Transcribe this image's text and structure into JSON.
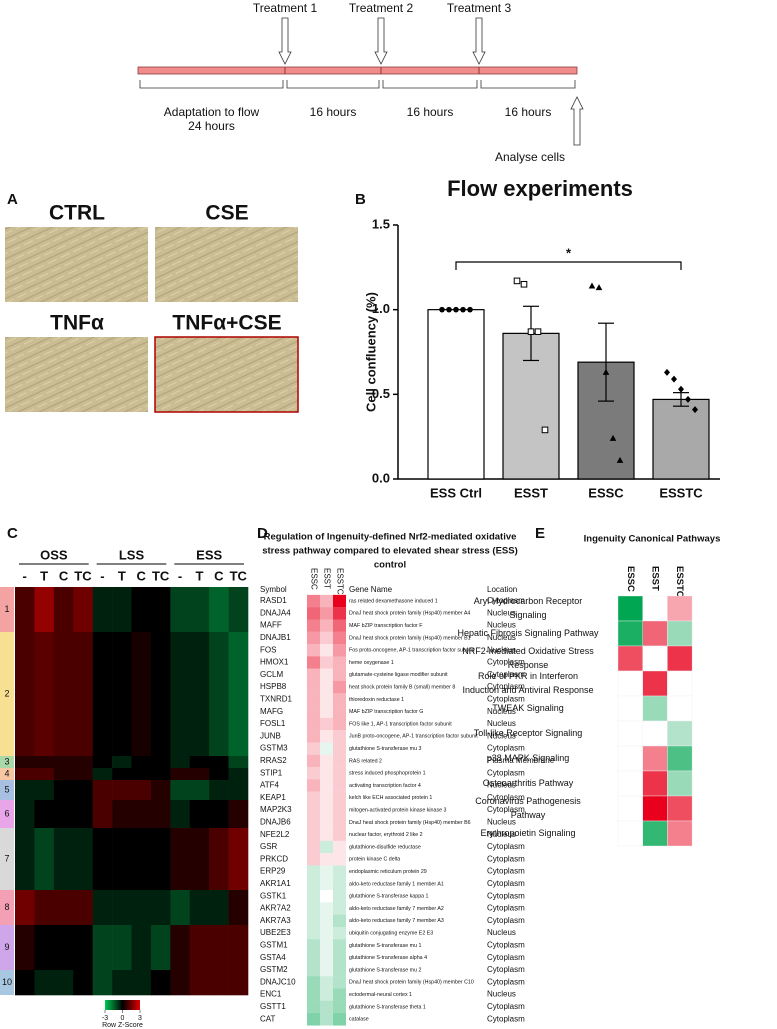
{
  "timeline": {
    "treatments": [
      "Treatment 1",
      "Treatment 2",
      "Treatment 3"
    ],
    "periods": [
      [
        "Adaptation to flow",
        "24 hours"
      ],
      [
        "16 hours"
      ],
      [
        "16 hours"
      ],
      [
        "16 hours"
      ]
    ],
    "endpoint": "Analyse cells"
  },
  "panel_letters": [
    "A",
    "B",
    "C",
    "D",
    "E"
  ],
  "micrographs": {
    "labels": [
      "CTRL",
      "CSE",
      "TNFα",
      "TNFα+CSE"
    ]
  },
  "chart_data": [
    {
      "type": "bar",
      "title": "Flow experiments",
      "ylabel": "Cell confluency (%)",
      "categories": [
        "ESS Ctrl",
        "ESST",
        "ESSC",
        "ESSTC"
      ],
      "values": [
        1,
        0.86,
        0.69,
        0.47
      ],
      "errors": [
        0,
        0.16,
        0.23,
        0.04
      ],
      "colors": [
        "#ffffff",
        "#c4c4c4",
        "#7b7b7b",
        "#a9a9a9"
      ],
      "points": [
        [
          1,
          1,
          1,
          1,
          1
        ],
        [
          1.17,
          1.15,
          0.87,
          0.87,
          0.29
        ],
        [
          1.14,
          1.13,
          0.63,
          0.24,
          0.11
        ],
        [
          0.63,
          0.59,
          0.53,
          0.47,
          0.41
        ]
      ],
      "markers": [
        "circle",
        "square",
        "triangle",
        "diamond"
      ],
      "annotation": "*",
      "ylim": [
        0,
        1.5
      ],
      "yticks": [
        {
          "value": 0,
          "label": "0.0"
        },
        0.5,
        {
          "value": 1,
          "label": "1.0"
        },
        1.5
      ]
    },
    {
      "type": "heatmap",
      "groups": [
        "OSS",
        "LSS",
        "ESS"
      ],
      "categories": [
        "-",
        "T",
        "C",
        "TC",
        "-",
        "T",
        "C",
        "TC",
        "-",
        "T",
        "C",
        "TC"
      ],
      "clusters": [
        "1",
        "2",
        "3",
        "4",
        "5",
        "6",
        "7",
        "8",
        "9",
        "10"
      ],
      "cluster_colors": [
        "#f4a3a3",
        "#f8e092",
        "#a9d8a9",
        "#f7c7a4",
        "#a7bfe0",
        "#e8a6e8",
        "#d9d9d9",
        "#f4a0b4",
        "#cfa6ea",
        "#a8c8e2"
      ],
      "values": [
        [
          1,
          2,
          1,
          1.5,
          -0.5,
          -0.5,
          0,
          0,
          -1,
          -1,
          -1.5,
          -1
        ],
        [
          1,
          1.2,
          1,
          1,
          0,
          0,
          0.3,
          0,
          -0.5,
          -0.5,
          -1,
          -1.5
        ],
        [
          0.5,
          0.5,
          0.5,
          0.5,
          0,
          -0.5,
          0,
          0,
          -0.5,
          0,
          0,
          -1
        ],
        [
          1,
          1,
          0.5,
          0.5,
          -0.5,
          0,
          0,
          0,
          0.5,
          0.5,
          0,
          -0.5
        ],
        [
          -0.5,
          -0.5,
          0,
          0,
          1,
          1,
          1,
          0.5,
          -1,
          -1,
          -0.5,
          -0.5
        ],
        [
          -0.5,
          0,
          0,
          0,
          1,
          0.5,
          0.5,
          0.5,
          -0.5,
          0,
          0,
          0.5
        ],
        [
          -0.5,
          -1,
          -0.5,
          -0.5,
          0,
          0,
          0,
          0,
          0.5,
          0.5,
          1,
          1.5
        ],
        [
          1.5,
          1,
          1,
          1,
          -0.5,
          -0.5,
          -0.5,
          -0.5,
          -1,
          -0.5,
          -0.5,
          0.5
        ],
        [
          0.5,
          0,
          0,
          0,
          -1,
          -1,
          -0.5,
          -1,
          0.5,
          1,
          1,
          1
        ],
        [
          0,
          -0.5,
          -0.5,
          0,
          -1,
          -0.5,
          -0.5,
          0,
          0.5,
          1,
          1,
          1
        ]
      ],
      "colorbar": {
        "ticks": [
          -3,
          0,
          3
        ],
        "label": "Row Z-Score",
        "colors": [
          "#00c853",
          "#000000",
          "#e00000"
        ]
      }
    },
    {
      "type": "heatmap",
      "title": "Ingenuity Canonical Pathways",
      "columns": [
        "ESSC",
        "ESST",
        "ESSTC"
      ],
      "rows": [
        [
          "Aryl Hydrocarbon Receptor",
          "Signaling"
        ],
        [
          "Hepatic Fibrosis Signaling Pathway"
        ],
        [
          "NRF2-mediated Oxidative Stress",
          "Response"
        ],
        [
          "Role of PKR in Interferon",
          "Induction and Antiviral Response"
        ],
        [
          "TWEAK Signaling"
        ],
        [
          "Toll-like Receptor Signaling"
        ],
        [
          "p38 MAPK Signaling"
        ],
        [
          "Osteoarthritis Pathway"
        ],
        [
          "Coronavirus Pathogenesis",
          "Pathway"
        ],
        [
          "Erythropoietin Signaling"
        ]
      ],
      "values": [
        [
          -1,
          0,
          0.35
        ],
        [
          -0.9,
          0.6,
          -0.4
        ],
        [
          0.7,
          0,
          0.8
        ],
        [
          0,
          0.8,
          0
        ],
        [
          0,
          -0.4,
          0
        ],
        [
          0,
          0,
          -0.3
        ],
        [
          0,
          0.5,
          -0.7
        ],
        [
          0,
          0.8,
          -0.4
        ],
        [
          0,
          1,
          0.7
        ],
        [
          0,
          -0.8,
          0.5
        ]
      ],
      "colors": [
        "#00a651",
        "#ffffff",
        "#e8001c"
      ]
    }
  ],
  "table_d": {
    "title": [
      "Regulation of Ingenuity-defined Nrf2-mediated oxidative",
      "stress pathway compared to elevated shear stress (ESS)",
      "control"
    ],
    "headers": {
      "symbol": "Symbol",
      "columns": [
        "ESSC",
        "ESST",
        "ESSTC"
      ],
      "gene": "Gene Name",
      "location": "Location"
    },
    "colors": [
      "#00a651",
      "#ffffff",
      "#e8001c"
    ],
    "rows": [
      {
        "symbol": "RASD1",
        "gene": "ras related dexamethasone induced 1",
        "location": "Cytoplasm",
        "values": [
          0.5,
          0.3,
          1
        ]
      },
      {
        "symbol": "DNAJA4",
        "gene": "DnaJ heat shock protein family (Hsp40) member A4",
        "location": "Nucleus",
        "values": [
          0.6,
          0.4,
          0.8
        ]
      },
      {
        "symbol": "MAFF",
        "gene": "MAF bZIP transcription factor F",
        "location": "Nucleus",
        "values": [
          0.5,
          0.3,
          0.6
        ]
      },
      {
        "symbol": "DNAJB1",
        "gene": "DnaJ heat shock protein family (Hsp40) member B1",
        "location": "Nucleus",
        "values": [
          0.4,
          0.2,
          0.5
        ]
      },
      {
        "symbol": "FOS",
        "gene": "Fos proto-oncogene, AP-1 transcription factor subunit",
        "location": "Nucleus",
        "values": [
          0.3,
          0.1,
          0.4
        ]
      },
      {
        "symbol": "HMOX1",
        "gene": "heme oxygenase 1",
        "location": "Cytoplasm",
        "values": [
          0.5,
          0.2,
          0.3
        ]
      },
      {
        "symbol": "GCLM",
        "gene": "glutamate-cysteine ligase modifier subunit",
        "location": "Cytoplasm",
        "values": [
          0.3,
          0.1,
          0.3
        ]
      },
      {
        "symbol": "HSPB8",
        "gene": "heat shock protein family B (small) member 8",
        "location": "Cytoplasm",
        "values": [
          0.3,
          0.1,
          0.4
        ]
      },
      {
        "symbol": "TXNRD1",
        "gene": "thioredoxin reductase 1",
        "location": "Cytoplasm",
        "values": [
          0.3,
          0.1,
          0.3
        ]
      },
      {
        "symbol": "MAFG",
        "gene": "MAF bZIP transcription factor G",
        "location": "Nucleus",
        "values": [
          0.3,
          0.1,
          0.3
        ]
      },
      {
        "symbol": "FOSL1",
        "gene": "FOS like 1, AP-1 transcription factor subunit",
        "location": "Nucleus",
        "values": [
          0.3,
          0.2,
          0.3
        ]
      },
      {
        "symbol": "JUNB",
        "gene": "JunB proto-oncogene, AP-1 transcription factor subunit",
        "location": "Nucleus",
        "values": [
          0.3,
          0.1,
          0.2
        ]
      },
      {
        "symbol": "GSTM3",
        "gene": "glutathione S-transferase mu 3",
        "location": "Cytoplasm",
        "values": [
          0.2,
          -0.1,
          0.2
        ]
      },
      {
        "symbol": "RRAS2",
        "gene": "RAS related 2",
        "location": "Plasma Membrane",
        "values": [
          0.3,
          0.1,
          0.2
        ]
      },
      {
        "symbol": "STIP1",
        "gene": "stress induced phosphoprotein 1",
        "location": "Cytoplasm",
        "values": [
          0.2,
          0.1,
          0.2
        ]
      },
      {
        "symbol": "ATF4",
        "gene": "activating transcription factor 4",
        "location": "Nucleus",
        "values": [
          0.3,
          0.1,
          0.2
        ]
      },
      {
        "symbol": "KEAP1",
        "gene": "kelch like ECH associated protein 1",
        "location": "Cytoplasm",
        "values": [
          0.2,
          0.1,
          0.2
        ]
      },
      {
        "symbol": "MAP2K3",
        "gene": "mitogen-activated protein kinase kinase 3",
        "location": "Cytoplasm",
        "values": [
          0.2,
          0.1,
          0.2
        ]
      },
      {
        "symbol": "DNAJB6",
        "gene": "DnaJ heat shock protein family (Hsp40) member B6",
        "location": "Nucleus",
        "values": [
          0.2,
          0.1,
          0.2
        ]
      },
      {
        "symbol": "NFE2L2",
        "gene": "nuclear factor, erythroid 2 like 2",
        "location": "Nucleus",
        "values": [
          0.2,
          0.1,
          0.2
        ]
      },
      {
        "symbol": "GSR",
        "gene": "glutathione-disulfide reductase",
        "location": "Cytoplasm",
        "values": [
          0.2,
          -0.2,
          0.1
        ]
      },
      {
        "symbol": "PRKCD",
        "gene": "protein kinase C delta",
        "location": "Cytoplasm",
        "values": [
          0.2,
          0.1,
          0.1
        ]
      },
      {
        "symbol": "ERP29",
        "gene": "endoplasmic reticulum protein 29",
        "location": "Cytoplasm",
        "values": [
          -0.2,
          -0.1,
          -0.2
        ]
      },
      {
        "symbol": "AKR1A1",
        "gene": "aldo-keto reductase family 1 member A1",
        "location": "Cytoplasm",
        "values": [
          -0.2,
          -0.1,
          -0.2
        ]
      },
      {
        "symbol": "GSTK1",
        "gene": "glutathione S-transferase kappa 1",
        "location": "Cytoplasm",
        "values": [
          -0.2,
          0,
          -0.2
        ]
      },
      {
        "symbol": "AKR7A2",
        "gene": "aldo-keto reductase family 7 member A2",
        "location": "Cytoplasm",
        "values": [
          -0.2,
          -0.1,
          -0.2
        ]
      },
      {
        "symbol": "AKR7A3",
        "gene": "aldo-keto reductase family 7 member A3",
        "location": "Cytoplasm",
        "values": [
          -0.2,
          -0.1,
          -0.3
        ]
      },
      {
        "symbol": "UBE2E3",
        "gene": "ubiquitin conjugating enzyme E2 E3",
        "location": "Nucleus",
        "values": [
          -0.2,
          -0.1,
          -0.2
        ]
      },
      {
        "symbol": "GSTM1",
        "gene": "glutathione S-transferase mu 1",
        "location": "Cytoplasm",
        "values": [
          -0.3,
          -0.1,
          -0.3
        ]
      },
      {
        "symbol": "GSTA4",
        "gene": "glutathione S-transferase alpha 4",
        "location": "Cytoplasm",
        "values": [
          -0.3,
          -0.1,
          -0.3
        ]
      },
      {
        "symbol": "GSTM2",
        "gene": "glutathione S-transferase mu 2",
        "location": "Cytoplasm",
        "values": [
          -0.3,
          -0.1,
          -0.3
        ]
      },
      {
        "symbol": "DNAJC10",
        "gene": "DnaJ heat shock protein family (Hsp40) member C10",
        "location": "Cytoplasm",
        "values": [
          -0.4,
          -0.2,
          -0.3
        ]
      },
      {
        "symbol": "ENC1",
        "gene": "ectodermal-neural cortex 1",
        "location": "Nucleus",
        "values": [
          -0.4,
          -0.2,
          -0.4
        ]
      },
      {
        "symbol": "GSTT1",
        "gene": "glutathione S-transferase theta 1",
        "location": "Cytoplasm",
        "values": [
          -0.4,
          -0.3,
          -0.4
        ]
      },
      {
        "symbol": "CAT",
        "gene": "catalase",
        "location": "Cytoplasm",
        "values": [
          -0.5,
          -0.3,
          -0.5
        ]
      }
    ]
  }
}
